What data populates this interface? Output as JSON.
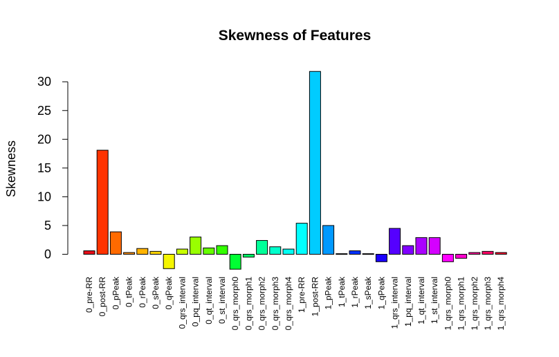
{
  "chart_data": {
    "type": "bar",
    "title": "Skewness of Features",
    "xlabel": "",
    "ylabel": "Skewness",
    "ylim": [
      -3,
      32
    ],
    "yticks": [
      0,
      5,
      10,
      15,
      20,
      25,
      30
    ],
    "grid": false,
    "legend": "none",
    "categories": [
      "0_pre-RR",
      "0_post-RR",
      "0_pPeak",
      "0_tPeak",
      "0_rPeak",
      "0_sPeak",
      "0_qPeak",
      "0_qrs_interval",
      "0_pq_interval",
      "0_qt_interval",
      "0_st_interval",
      "0_qrs_morph0",
      "0_qrs_morph1",
      "0_qrs_morph2",
      "0_qrs_morph3",
      "0_qrs_morph4",
      "1_pre-RR",
      "1_post-RR",
      "1_pPeak",
      "1_tPeak",
      "1_rPeak",
      "1_sPeak",
      "1_qPeak",
      "1_qrs_interval",
      "1_pq_interval",
      "1_qt_interval",
      "1_st_interval",
      "1_qrs_morph0",
      "1_qrs_morph1",
      "1_qrs_morph2",
      "1_qrs_morph3",
      "1_qrs_morph4"
    ],
    "values": [
      0.6,
      18.1,
      3.9,
      0.3,
      1.0,
      0.5,
      -2.5,
      0.9,
      3.0,
      1.1,
      1.5,
      -2.6,
      -0.5,
      2.4,
      1.3,
      0.9,
      5.4,
      31.8,
      5.0,
      0.1,
      0.6,
      0.1,
      -1.3,
      4.5,
      1.5,
      2.9,
      2.9,
      -1.3,
      -0.7,
      0.3,
      0.5,
      0.3
    ],
    "colors": [
      "#e60f1a",
      "#ff3300",
      "#ff6a00",
      "#ff9100",
      "#ffb300",
      "#ffd500",
      "#f5f500",
      "#c8ff00",
      "#99ff00",
      "#66ff00",
      "#33ff00",
      "#00ff33",
      "#00ff66",
      "#00ff99",
      "#00ffcc",
      "#00fff2",
      "#00ffff",
      "#00ccff",
      "#0099ff",
      "#0066ff",
      "#0033ff",
      "#0000ff",
      "#1a00ff",
      "#5500ff",
      "#8000ff",
      "#aa00ff",
      "#d400ff",
      "#ff00ff",
      "#ff00cc",
      "#ff0099",
      "#ff0066",
      "#ff0033"
    ]
  }
}
